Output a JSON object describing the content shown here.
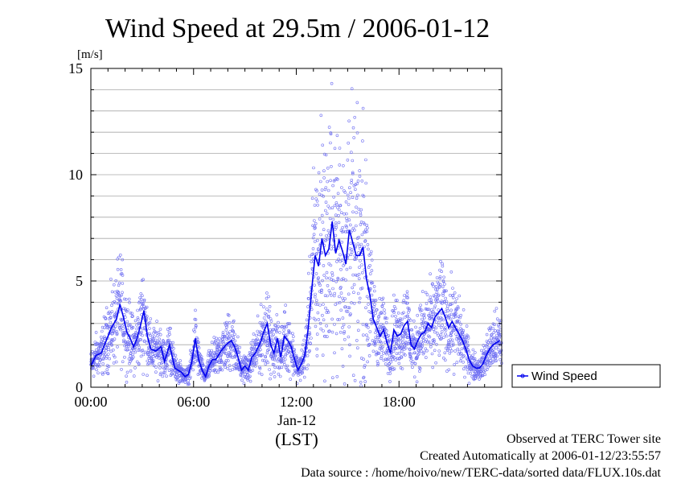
{
  "chart_data": {
    "type": "scatter",
    "title": "Wind Speed at 29.5m / 2006-01-12",
    "ylabel": "[m/s]",
    "ylim": [
      0,
      15
    ],
    "xlim": [
      0,
      24
    ],
    "y_ticks": [
      "0",
      "5",
      "10",
      "15"
    ],
    "x_ticks": [
      "00:00",
      "06:00",
      "12:00",
      "18:00"
    ],
    "x_date_label": "Jan-12",
    "x_axis_note": "(LST)",
    "grid": true,
    "legend_position": "right",
    "series": [
      {
        "name": "Wind Speed",
        "color": "#0000ee",
        "x_unit": "hours",
        "mean_line": [
          [
            0.0,
            1.0
          ],
          [
            0.3,
            1.5
          ],
          [
            0.6,
            1.6
          ],
          [
            0.9,
            2.2
          ],
          [
            1.2,
            2.8
          ],
          [
            1.5,
            3.2
          ],
          [
            1.7,
            3.9
          ],
          [
            1.9,
            3.3
          ],
          [
            2.1,
            2.6
          ],
          [
            2.3,
            2.3
          ],
          [
            2.5,
            1.9
          ],
          [
            2.7,
            2.3
          ],
          [
            2.9,
            2.9
          ],
          [
            3.1,
            3.6
          ],
          [
            3.3,
            2.4
          ],
          [
            3.5,
            1.8
          ],
          [
            3.8,
            1.7
          ],
          [
            4.1,
            1.9
          ],
          [
            4.3,
            1.2
          ],
          [
            4.6,
            2.0
          ],
          [
            4.9,
            0.9
          ],
          [
            5.1,
            0.8
          ],
          [
            5.3,
            0.7
          ],
          [
            5.5,
            0.5
          ],
          [
            5.7,
            0.6
          ],
          [
            5.9,
            1.2
          ],
          [
            6.1,
            2.3
          ],
          [
            6.3,
            1.3
          ],
          [
            6.5,
            0.8
          ],
          [
            6.7,
            0.5
          ],
          [
            6.9,
            1.0
          ],
          [
            7.1,
            1.3
          ],
          [
            7.3,
            1.3
          ],
          [
            7.6,
            1.7
          ],
          [
            7.9,
            2.0
          ],
          [
            8.2,
            2.2
          ],
          [
            8.4,
            1.9
          ],
          [
            8.6,
            1.4
          ],
          [
            8.8,
            0.8
          ],
          [
            9.0,
            1.0
          ],
          [
            9.2,
            0.8
          ],
          [
            9.4,
            1.4
          ],
          [
            9.6,
            1.6
          ],
          [
            9.9,
            2.1
          ],
          [
            10.1,
            2.6
          ],
          [
            10.3,
            3.0
          ],
          [
            10.5,
            2.0
          ],
          [
            10.7,
            1.6
          ],
          [
            10.9,
            2.3
          ],
          [
            11.1,
            1.4
          ],
          [
            11.3,
            2.4
          ],
          [
            11.5,
            2.2
          ],
          [
            11.7,
            1.9
          ],
          [
            11.9,
            1.3
          ],
          [
            12.1,
            0.8
          ],
          [
            12.3,
            1.1
          ],
          [
            12.5,
            1.5
          ],
          [
            12.7,
            2.8
          ],
          [
            12.9,
            4.6
          ],
          [
            13.1,
            6.2
          ],
          [
            13.3,
            5.7
          ],
          [
            13.5,
            7.0
          ],
          [
            13.7,
            6.2
          ],
          [
            13.9,
            6.5
          ],
          [
            14.1,
            7.8
          ],
          [
            14.3,
            6.3
          ],
          [
            14.5,
            6.9
          ],
          [
            14.7,
            6.4
          ],
          [
            14.9,
            5.8
          ],
          [
            15.1,
            7.4
          ],
          [
            15.3,
            6.8
          ],
          [
            15.5,
            6.2
          ],
          [
            15.7,
            6.2
          ],
          [
            15.9,
            6.6
          ],
          [
            16.1,
            5.1
          ],
          [
            16.3,
            4.3
          ],
          [
            16.5,
            3.2
          ],
          [
            16.7,
            2.8
          ],
          [
            16.9,
            2.4
          ],
          [
            17.1,
            2.7
          ],
          [
            17.3,
            2.1
          ],
          [
            17.5,
            1.6
          ],
          [
            17.7,
            2.7
          ],
          [
            17.9,
            2.4
          ],
          [
            18.1,
            2.5
          ],
          [
            18.3,
            2.9
          ],
          [
            18.5,
            3.1
          ],
          [
            18.7,
            2.0
          ],
          [
            18.9,
            1.8
          ],
          [
            19.1,
            2.2
          ],
          [
            19.3,
            2.5
          ],
          [
            19.5,
            2.6
          ],
          [
            19.7,
            3.0
          ],
          [
            19.9,
            2.8
          ],
          [
            20.1,
            3.3
          ],
          [
            20.3,
            3.5
          ],
          [
            20.5,
            3.7
          ],
          [
            20.7,
            3.3
          ],
          [
            20.9,
            2.8
          ],
          [
            21.1,
            3.1
          ],
          [
            21.3,
            2.8
          ],
          [
            21.5,
            2.5
          ],
          [
            21.7,
            2.2
          ],
          [
            21.9,
            1.8
          ],
          [
            22.1,
            1.3
          ],
          [
            22.3,
            1.0
          ],
          [
            22.5,
            0.9
          ],
          [
            22.7,
            0.9
          ],
          [
            22.9,
            1.1
          ],
          [
            23.1,
            1.5
          ],
          [
            23.3,
            1.8
          ],
          [
            23.5,
            2.0
          ],
          [
            23.7,
            2.1
          ],
          [
            23.9,
            2.2
          ]
        ]
      }
    ]
  },
  "footer": {
    "line1": "Observed at TERC Tower site",
    "line2": "Created Automatically at 2006-01-12/23:55:57",
    "line3": "Data source : /home/hoivo/new/TERC-data/sorted  data/FLUX.10s.dat"
  }
}
